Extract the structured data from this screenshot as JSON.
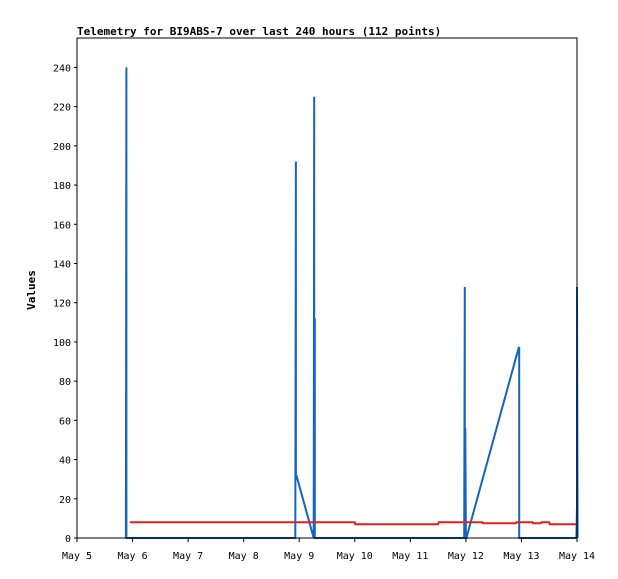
{
  "chart_data": {
    "type": "line",
    "title": "Telemetry for BI9ABS-7 over last 240 hours (112 points)",
    "xlabel": "",
    "ylabel": "Values",
    "x_ticks": [
      "May 5",
      "May 6",
      "May 7",
      "May 8",
      "May 9",
      "May 10",
      "May 11",
      "May 12",
      "May 13",
      "May 14"
    ],
    "x_tick_values": [
      0,
      1,
      2,
      3,
      4,
      5,
      6,
      7,
      8,
      9
    ],
    "x_unit": "days since May 5 00:00",
    "xlim": [
      0,
      9
    ],
    "y_ticks": [
      "0",
      "20",
      "40",
      "60",
      "80",
      "100",
      "120",
      "140",
      "160",
      "180",
      "200",
      "220",
      "240"
    ],
    "y_tick_values": [
      0,
      20,
      40,
      60,
      80,
      100,
      120,
      140,
      160,
      180,
      200,
      220,
      240
    ],
    "ylim": [
      0,
      255
    ],
    "grid": false,
    "series": [
      {
        "color": "#1565c0",
        "x": [
          0.88,
          0.89,
          0.89,
          0.9,
          3.93,
          3.94,
          3.94,
          3.95,
          4.26,
          4.27,
          4.27,
          4.28,
          4.28,
          4.29,
          4.3,
          6.97,
          6.98,
          6.98,
          6.99,
          7.0,
          7.01,
          7.95,
          7.96,
          7.96,
          7.97,
          8.99,
          9.0,
          9.0,
          9.01
        ],
        "y": [
          0,
          240,
          0,
          0,
          0,
          192,
          32,
          32,
          0,
          225,
          0,
          112,
          0,
          0,
          0,
          0,
          128,
          0,
          56,
          0,
          0,
          97,
          97,
          0,
          0,
          0,
          16,
          128,
          0
        ]
      },
      {
        "color": "#e02020",
        "x": [
          0.95,
          5.0,
          5.01,
          6.5,
          6.51,
          7.3,
          7.31,
          7.9,
          7.91,
          8.2,
          8.21,
          8.35,
          8.36,
          8.5,
          8.51,
          9.0
        ],
        "y": [
          8,
          8,
          7,
          7,
          8,
          8,
          7.5,
          7.5,
          8,
          8,
          7.5,
          7.5,
          8,
          8,
          7,
          7
        ]
      }
    ]
  }
}
